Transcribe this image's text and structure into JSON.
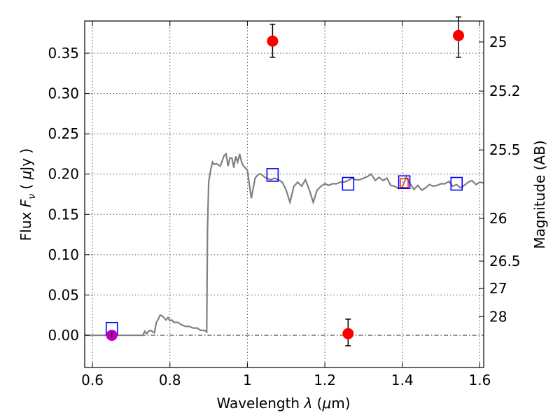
{
  "chart_data": {
    "type": "scatter",
    "title": "",
    "xlabel_prefix": "Wavelength  ",
    "xlabel_symbol": "λ",
    "xlabel_unit_open": " (",
    "xlabel_unit_mu": "μ",
    "xlabel_unit_close": "m)",
    "ylabel_prefix": "Flux  ",
    "ylabel_symbol": "F",
    "ylabel_subscript": "ν",
    "ylabel_unit_open": "  ( ",
    "ylabel_unit_mu": "μ",
    "ylabel_unit_close": "Jy )",
    "y2label": "Magnitude (AB)",
    "xlim": [
      0.58,
      1.61
    ],
    "ylim": [
      -0.04,
      0.39
    ],
    "grid": true,
    "x_ticks": [
      {
        "value": 0.6,
        "label": "0.6"
      },
      {
        "value": 0.8,
        "label": "0.8"
      },
      {
        "value": 1.0,
        "label": "1"
      },
      {
        "value": 1.2,
        "label": "1.2"
      },
      {
        "value": 1.4,
        "label": "1.4"
      },
      {
        "value": 1.6,
        "label": "1.6"
      }
    ],
    "y_ticks": [
      {
        "value": 0.0,
        "label": "0.00"
      },
      {
        "value": 0.05,
        "label": "0.05"
      },
      {
        "value": 0.1,
        "label": "0.10"
      },
      {
        "value": 0.15,
        "label": "0.15"
      },
      {
        "value": 0.2,
        "label": "0.20"
      },
      {
        "value": 0.25,
        "label": "0.25"
      },
      {
        "value": 0.3,
        "label": "0.30"
      },
      {
        "value": 0.35,
        "label": "0.35"
      }
    ],
    "y2_ticks": [
      {
        "flux": 0.364,
        "label": "25"
      },
      {
        "flux": 0.303,
        "label": "25.2"
      },
      {
        "flux": 0.23,
        "label": "25.5"
      },
      {
        "flux": 0.145,
        "label": "26"
      },
      {
        "flux": 0.092,
        "label": "26.5"
      },
      {
        "flux": 0.058,
        "label": "27"
      },
      {
        "flux": 0.023,
        "label": "28"
      }
    ],
    "model_sed": {
      "name": "",
      "color": "#808080",
      "x": [
        0.58,
        0.72,
        0.73,
        0.735,
        0.74,
        0.745,
        0.75,
        0.76,
        0.765,
        0.77,
        0.775,
        0.78,
        0.79,
        0.795,
        0.8,
        0.805,
        0.81,
        0.82,
        0.83,
        0.84,
        0.85,
        0.86,
        0.87,
        0.88,
        0.89,
        0.895,
        0.897,
        0.9,
        0.905,
        0.91,
        0.915,
        0.92,
        0.93,
        0.94,
        0.945,
        0.95,
        0.955,
        0.96,
        0.965,
        0.97,
        0.975,
        0.98,
        0.985,
        0.99,
        1.0,
        1.01,
        1.02,
        1.025,
        1.03,
        1.035,
        1.04,
        1.045,
        1.05,
        1.06,
        1.07,
        1.08,
        1.09,
        1.1,
        1.11,
        1.12,
        1.13,
        1.14,
        1.15,
        1.16,
        1.17,
        1.18,
        1.19,
        1.2,
        1.21,
        1.22,
        1.23,
        1.24,
        1.25,
        1.26,
        1.27,
        1.28,
        1.29,
        1.3,
        1.31,
        1.32,
        1.33,
        1.34,
        1.35,
        1.36,
        1.37,
        1.38,
        1.39,
        1.4,
        1.41,
        1.42,
        1.43,
        1.44,
        1.45,
        1.46,
        1.47,
        1.48,
        1.49,
        1.5,
        1.51,
        1.52,
        1.53,
        1.54,
        1.55,
        1.56,
        1.57,
        1.58,
        1.59,
        1.6,
        1.61
      ],
      "y": [
        0.0,
        0.0,
        0.0,
        0.005,
        0.002,
        0.005,
        0.006,
        0.003,
        0.016,
        0.02,
        0.025,
        0.024,
        0.019,
        0.022,
        0.018,
        0.019,
        0.016,
        0.016,
        0.013,
        0.011,
        0.011,
        0.009,
        0.009,
        0.006,
        0.006,
        0.004,
        0.13,
        0.19,
        0.205,
        0.215,
        0.212,
        0.213,
        0.21,
        0.223,
        0.225,
        0.21,
        0.22,
        0.22,
        0.208,
        0.222,
        0.215,
        0.225,
        0.215,
        0.21,
        0.205,
        0.17,
        0.195,
        0.198,
        0.2,
        0.2,
        0.198,
        0.196,
        0.195,
        0.193,
        0.195,
        0.193,
        0.19,
        0.18,
        0.165,
        0.185,
        0.19,
        0.185,
        0.193,
        0.18,
        0.165,
        0.18,
        0.185,
        0.188,
        0.186,
        0.188,
        0.188,
        0.19,
        0.19,
        0.192,
        0.195,
        0.193,
        0.193,
        0.195,
        0.197,
        0.2,
        0.192,
        0.196,
        0.192,
        0.195,
        0.186,
        0.185,
        0.182,
        0.184,
        0.196,
        0.188,
        0.181,
        0.186,
        0.18,
        0.183,
        0.187,
        0.185,
        0.186,
        0.188,
        0.188,
        0.191,
        0.185,
        0.187,
        0.183,
        0.186,
        0.19,
        0.192,
        0.187,
        0.19,
        0.189
      ]
    },
    "observed": {
      "name": "",
      "color": "#ff0000",
      "points": [
        {
          "x": 1.065,
          "y": 0.365,
          "err_lo": 0.02,
          "err_hi": 0.021
        },
        {
          "x": 1.26,
          "y": 0.002,
          "err_lo": 0.015,
          "err_hi": 0.018
        },
        {
          "x": 1.545,
          "y": 0.372,
          "err_lo": 0.027,
          "err_hi": 0.023
        }
      ]
    },
    "upper_limit": {
      "name": "",
      "color": "#c000c0",
      "points": [
        {
          "x": 0.65,
          "y": 0.0,
          "err_lo": 0.003,
          "err_hi": 0.004
        }
      ]
    },
    "model_photometry": {
      "name": "",
      "color": "#0000ff",
      "points": [
        {
          "x": 0.65,
          "y": 0.008
        },
        {
          "x": 1.065,
          "y": 0.199
        },
        {
          "x": 1.26,
          "y": 0.188
        },
        {
          "x": 1.405,
          "y": 0.19
        },
        {
          "x": 1.54,
          "y": 0.188
        }
      ]
    },
    "model_photometry_alt": {
      "name": "",
      "color": "#ff0000",
      "points": [
        {
          "x": 1.405,
          "y": 0.189
        }
      ]
    }
  }
}
